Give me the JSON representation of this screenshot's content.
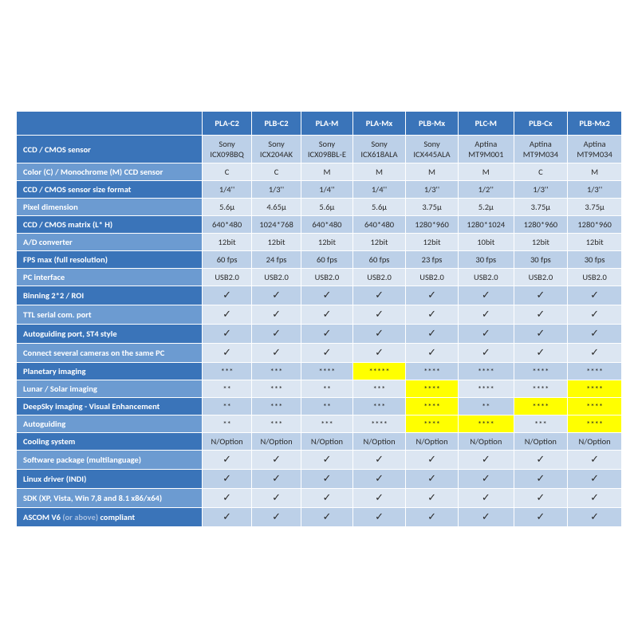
{
  "colors": {
    "header_bg": "#3a74b9",
    "row_dark_label_bg": "#3a74b9",
    "row_light_label_bg": "#6c9bd1",
    "cell_dark_bg": "#bcd0e8",
    "cell_light_bg": "#dce6f2",
    "highlight_bg": "#ffff00",
    "border": "#ffffff",
    "check": "#1a8a1a",
    "text": "#2a2a2a"
  },
  "check_mark": "✓",
  "columns": [
    "PLA-C2",
    "PLB-C2",
    "PLA-M",
    "PLA-Mx",
    "PLB-Mx",
    "PLC-M",
    "PLB-Cx",
    "PLB-Mx2"
  ],
  "rows": [
    {
      "label": "CCD / CMOS sensor",
      "shade": "dark",
      "cells": [
        {
          "v": "Sony ICX098BQ"
        },
        {
          "v": "Sony ICX204AK"
        },
        {
          "v": "Sony ICX098BL-E"
        },
        {
          "v": "Sony ICX618ALA"
        },
        {
          "v": "Sony ICX445ALA"
        },
        {
          "v": "Aptina MT9M001"
        },
        {
          "v": "Aptina MT9M034"
        },
        {
          "v": "Aptina MT9M034"
        }
      ]
    },
    {
      "label": "Color (C) / Monochrome (M) CCD sensor",
      "shade": "light",
      "cells": [
        {
          "v": "C"
        },
        {
          "v": "C"
        },
        {
          "v": "M"
        },
        {
          "v": "M"
        },
        {
          "v": "M"
        },
        {
          "v": "M"
        },
        {
          "v": "C"
        },
        {
          "v": "M"
        }
      ]
    },
    {
      "label": "CCD / CMOS sensor size format",
      "shade": "dark",
      "cells": [
        {
          "v": "1/4''"
        },
        {
          "v": "1/3''"
        },
        {
          "v": "1/4''"
        },
        {
          "v": "1/4''"
        },
        {
          "v": "1/3''"
        },
        {
          "v": "1/2''"
        },
        {
          "v": "1/3''"
        },
        {
          "v": "1/3''"
        }
      ]
    },
    {
      "label": "Pixel dimension",
      "shade": "light",
      "cells": [
        {
          "v": "5.6µ"
        },
        {
          "v": "4.65µ"
        },
        {
          "v": "5.6µ"
        },
        {
          "v": "5.6µ"
        },
        {
          "v": "3.75µ"
        },
        {
          "v": "5.2µ"
        },
        {
          "v": "3.75µ"
        },
        {
          "v": "3.75µ"
        }
      ]
    },
    {
      "label": "CCD / CMOS matrix (L* H)",
      "shade": "dark",
      "cells": [
        {
          "v": "640*480"
        },
        {
          "v": "1024*768"
        },
        {
          "v": "640*480"
        },
        {
          "v": "640*480"
        },
        {
          "v": "1280*960"
        },
        {
          "v": "1280*1024"
        },
        {
          "v": "1280*960"
        },
        {
          "v": "1280*960"
        }
      ]
    },
    {
      "label": "A/D converter",
      "shade": "light",
      "cells": [
        {
          "v": "12bit"
        },
        {
          "v": "12bit"
        },
        {
          "v": "12bit"
        },
        {
          "v": "12bit"
        },
        {
          "v": "12bit"
        },
        {
          "v": "10bit"
        },
        {
          "v": "12bit"
        },
        {
          "v": "12bit"
        }
      ]
    },
    {
      "label": "FPS max (full resolution)",
      "shade": "dark",
      "cells": [
        {
          "v": "60 fps"
        },
        {
          "v": "24 fps"
        },
        {
          "v": "60 fps"
        },
        {
          "v": "60 fps"
        },
        {
          "v": "23 fps"
        },
        {
          "v": "30 fps"
        },
        {
          "v": "30 fps"
        },
        {
          "v": "30 fps"
        }
      ]
    },
    {
      "label": "PC interface",
      "shade": "light",
      "cells": [
        {
          "v": "USB2.0"
        },
        {
          "v": "USB2.0"
        },
        {
          "v": "USB2.0"
        },
        {
          "v": "USB2.0"
        },
        {
          "v": "USB2.0"
        },
        {
          "v": "USB2.0"
        },
        {
          "v": "USB2.0"
        },
        {
          "v": "USB2.0"
        }
      ]
    },
    {
      "label": "Binning 2*2 / ROI",
      "shade": "dark",
      "cells": [
        {
          "v": "✓",
          "c": true
        },
        {
          "v": "✓",
          "c": true
        },
        {
          "v": "✓",
          "c": true
        },
        {
          "v": "✓",
          "c": true
        },
        {
          "v": "✓",
          "c": true
        },
        {
          "v": "✓",
          "c": true
        },
        {
          "v": "✓",
          "c": true
        },
        {
          "v": "✓",
          "c": true
        }
      ]
    },
    {
      "label": "TTL serial com. port",
      "shade": "light",
      "cells": [
        {
          "v": "✓",
          "c": true
        },
        {
          "v": "✓",
          "c": true
        },
        {
          "v": "✓",
          "c": true
        },
        {
          "v": "✓",
          "c": true
        },
        {
          "v": "✓",
          "c": true
        },
        {
          "v": "✓",
          "c": true
        },
        {
          "v": "✓",
          "c": true
        },
        {
          "v": "✓",
          "c": true
        }
      ]
    },
    {
      "label": "Autoguiding port, ST4 style",
      "shade": "dark",
      "cells": [
        {
          "v": "✓",
          "c": true
        },
        {
          "v": "✓",
          "c": true
        },
        {
          "v": "✓",
          "c": true
        },
        {
          "v": "✓",
          "c": true
        },
        {
          "v": "✓",
          "c": true
        },
        {
          "v": "✓",
          "c": true
        },
        {
          "v": "✓",
          "c": true
        },
        {
          "v": "✓",
          "c": true
        }
      ]
    },
    {
      "label": "Connect several cameras on the same PC",
      "shade": "light",
      "cells": [
        {
          "v": "✓",
          "c": true
        },
        {
          "v": "✓",
          "c": true
        },
        {
          "v": "✓",
          "c": true
        },
        {
          "v": "✓",
          "c": true
        },
        {
          "v": "✓",
          "c": true
        },
        {
          "v": "✓",
          "c": true
        },
        {
          "v": "✓",
          "c": true
        },
        {
          "v": "✓",
          "c": true
        }
      ]
    },
    {
      "label": "Planetary imaging",
      "shade": "dark",
      "cells": [
        {
          "v": "***"
        },
        {
          "v": "***"
        },
        {
          "v": "****"
        },
        {
          "v": "*****",
          "hl": true
        },
        {
          "v": "****"
        },
        {
          "v": "****"
        },
        {
          "v": "****"
        },
        {
          "v": "****"
        }
      ]
    },
    {
      "label": "Lunar / Solar imaging",
      "shade": "light",
      "cells": [
        {
          "v": "**"
        },
        {
          "v": "***"
        },
        {
          "v": "**"
        },
        {
          "v": "***"
        },
        {
          "v": "****",
          "hl": true
        },
        {
          "v": "****"
        },
        {
          "v": "****"
        },
        {
          "v": "****",
          "hl": true
        }
      ]
    },
    {
      "label": "DeepSky imaging - Visual Enhancement",
      "shade": "dark",
      "cells": [
        {
          "v": "**"
        },
        {
          "v": "***"
        },
        {
          "v": "**"
        },
        {
          "v": "***"
        },
        {
          "v": "****",
          "hl": true
        },
        {
          "v": "**"
        },
        {
          "v": "****",
          "hl": true
        },
        {
          "v": "****",
          "hl": true
        }
      ]
    },
    {
      "label": "Autoguiding",
      "shade": "light",
      "cells": [
        {
          "v": "**"
        },
        {
          "v": "***"
        },
        {
          "v": "***"
        },
        {
          "v": "****"
        },
        {
          "v": "****",
          "hl": true
        },
        {
          "v": "****",
          "hl": true
        },
        {
          "v": "***"
        },
        {
          "v": "****",
          "hl": true
        }
      ]
    },
    {
      "label": "Cooling system",
      "shade": "dark",
      "cells": [
        {
          "v": "N/Option"
        },
        {
          "v": "N/Option"
        },
        {
          "v": "N/Option"
        },
        {
          "v": "N/Option"
        },
        {
          "v": "N/Option"
        },
        {
          "v": "N/Option"
        },
        {
          "v": "N/Option"
        },
        {
          "v": "N/Option"
        }
      ]
    },
    {
      "label": "Software package (multilanguage)",
      "shade": "light",
      "cells": [
        {
          "v": "✓",
          "c": true
        },
        {
          "v": "✓",
          "c": true
        },
        {
          "v": "✓",
          "c": true
        },
        {
          "v": "✓",
          "c": true
        },
        {
          "v": "✓",
          "c": true
        },
        {
          "v": "✓",
          "c": true
        },
        {
          "v": "✓",
          "c": true
        },
        {
          "v": "✓",
          "c": true
        }
      ]
    },
    {
      "label": "Linux driver (INDI)",
      "shade": "dark",
      "cells": [
        {
          "v": "✓",
          "c": true
        },
        {
          "v": "✓",
          "c": true
        },
        {
          "v": "✓",
          "c": true
        },
        {
          "v": "✓",
          "c": true
        },
        {
          "v": "✓",
          "c": true
        },
        {
          "v": "✓",
          "c": true
        },
        {
          "v": "✓",
          "c": true
        },
        {
          "v": "✓",
          "c": true
        }
      ]
    },
    {
      "label": "SDK (XP, Vista, Win 7,8 and 8.1 x86/x64)",
      "shade": "light",
      "cells": [
        {
          "v": "✓",
          "c": true
        },
        {
          "v": "✓",
          "c": true
        },
        {
          "v": "✓",
          "c": true
        },
        {
          "v": "✓",
          "c": true
        },
        {
          "v": "✓",
          "c": true
        },
        {
          "v": "✓",
          "c": true
        },
        {
          "v": "✓",
          "c": true
        },
        {
          "v": "✓",
          "c": true
        }
      ]
    },
    {
      "label": "ASCOM V6 <span class='faded'>(or above)</span> compliant",
      "shade": "dark",
      "html": true,
      "cells": [
        {
          "v": "✓",
          "c": true
        },
        {
          "v": "✓",
          "c": true
        },
        {
          "v": "✓",
          "c": true
        },
        {
          "v": "✓",
          "c": true
        },
        {
          "v": "✓",
          "c": true
        },
        {
          "v": "✓",
          "c": true
        },
        {
          "v": "✓",
          "c": true
        },
        {
          "v": "✓",
          "c": true
        }
      ]
    }
  ]
}
